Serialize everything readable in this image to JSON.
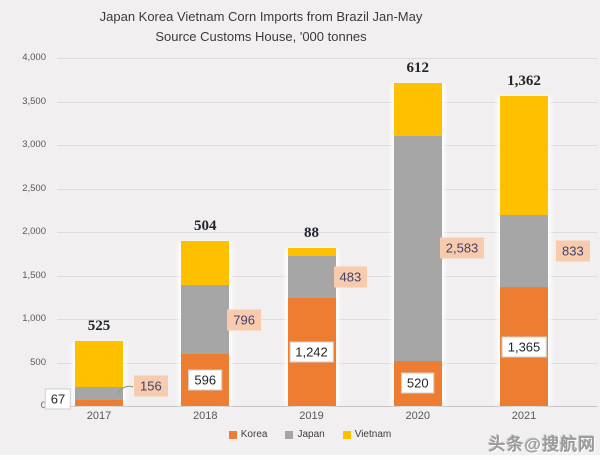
{
  "title": {
    "line1": "Japan Korea Vietnam Corn Imports from Brazil Jan-May",
    "line2": "Source Customs House, '000 tonnes"
  },
  "watermark": "头条@搜航网",
  "legend": {
    "items": [
      {
        "label": "Korea",
        "color": "#ED7D31"
      },
      {
        "label": "Japan",
        "color": "#A6A6A6"
      },
      {
        "label": "Vietnam",
        "color": "#FFC000"
      }
    ],
    "position": "bottom-center"
  },
  "chart_data": {
    "type": "bar",
    "stacked": true,
    "title": "Japan Korea Vietnam Corn Imports from Brazil Jan-May",
    "subtitle": "Source Customs House, '000 tonnes",
    "xlabel": "",
    "ylabel": "",
    "ylim": [
      0,
      4000
    ],
    "ytick_step": 500,
    "yticks": [
      "0",
      "500",
      "1,000",
      "1,500",
      "2,000",
      "2,500",
      "3,000",
      "3,500",
      "4,000"
    ],
    "grid": true,
    "legend_position": "bottom",
    "categories": [
      "2017",
      "2018",
      "2019",
      "2020",
      "2021"
    ],
    "series": [
      {
        "name": "Korea",
        "color": "#ED7D31",
        "values": [
          67,
          596,
          1242,
          520,
          1365
        ],
        "labels": [
          "67",
          "596",
          "1,242",
          "520",
          "1,365"
        ],
        "label_style": "white-box"
      },
      {
        "name": "Japan",
        "color": "#A6A6A6",
        "values": [
          156,
          796,
          483,
          2583,
          833
        ],
        "labels": [
          "156",
          "796",
          "483",
          "2,583",
          "833"
        ],
        "label_style": "peach-callout"
      },
      {
        "name": "Vietnam",
        "color": "#FFC000",
        "values": [
          525,
          504,
          88,
          612,
          1362
        ],
        "labels": [
          "525",
          "504",
          "88",
          "612",
          "1,362"
        ],
        "label_style": "bold-above"
      }
    ],
    "totals": [
      748,
      1896,
      1813,
      3715,
      3560
    ]
  },
  "colors": {
    "background": "#F1EFEF",
    "gridline": "#DCDCDC",
    "axis_line": "#C4C4C4",
    "korea": "#ED7D31",
    "japan": "#A6A6A6",
    "vietnam": "#FFC000",
    "callout_bg": "#F8CBAD",
    "callout_text": "#3F4273",
    "axis_text": "#595959",
    "title_text": "#3B3B3B",
    "bold_label_text": "#23252E",
    "watermark_text": "#9B9B9B"
  }
}
